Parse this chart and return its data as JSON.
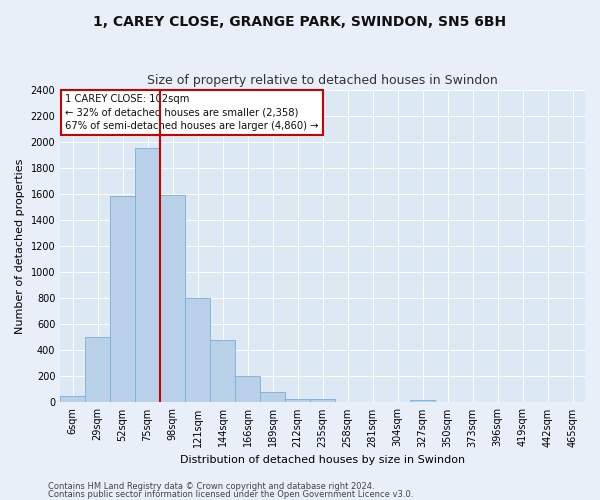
{
  "title": "1, CAREY CLOSE, GRANGE PARK, SWINDON, SN5 6BH",
  "subtitle": "Size of property relative to detached houses in Swindon",
  "xlabel": "Distribution of detached houses by size in Swindon",
  "ylabel": "Number of detached properties",
  "categories": [
    "6sqm",
    "29sqm",
    "52sqm",
    "75sqm",
    "98sqm",
    "121sqm",
    "144sqm",
    "166sqm",
    "189sqm",
    "212sqm",
    "235sqm",
    "258sqm",
    "281sqm",
    "304sqm",
    "327sqm",
    "350sqm",
    "373sqm",
    "396sqm",
    "419sqm",
    "442sqm",
    "465sqm"
  ],
  "values": [
    50,
    500,
    1580,
    1950,
    1590,
    800,
    480,
    200,
    80,
    30,
    30,
    0,
    0,
    0,
    20,
    0,
    0,
    0,
    0,
    0,
    0
  ],
  "bar_color": "#b8d0e8",
  "bar_edge_color": "#7aafd4",
  "vline_index": 3,
  "vline_color": "#cc0000",
  "annotation_title": "1 CAREY CLOSE: 102sqm",
  "annotation_line1": "← 32% of detached houses are smaller (2,358)",
  "annotation_line2": "67% of semi-detached houses are larger (4,860) →",
  "ylim": [
    0,
    2400
  ],
  "yticks": [
    0,
    200,
    400,
    600,
    800,
    1000,
    1200,
    1400,
    1600,
    1800,
    2000,
    2200,
    2400
  ],
  "footer1": "Contains HM Land Registry data © Crown copyright and database right 2024.",
  "footer2": "Contains public sector information licensed under the Open Government Licence v3.0.",
  "bg_color": "#e8eff8",
  "plot_bg_color": "#dce8f4",
  "grid_color": "#ffffff",
  "annotation_box_facecolor": "#ffffff",
  "annotation_box_edgecolor": "#cc0000",
  "title_fontsize": 10,
  "subtitle_fontsize": 9,
  "tick_fontsize": 7,
  "ylabel_fontsize": 8,
  "xlabel_fontsize": 8,
  "footer_fontsize": 6
}
